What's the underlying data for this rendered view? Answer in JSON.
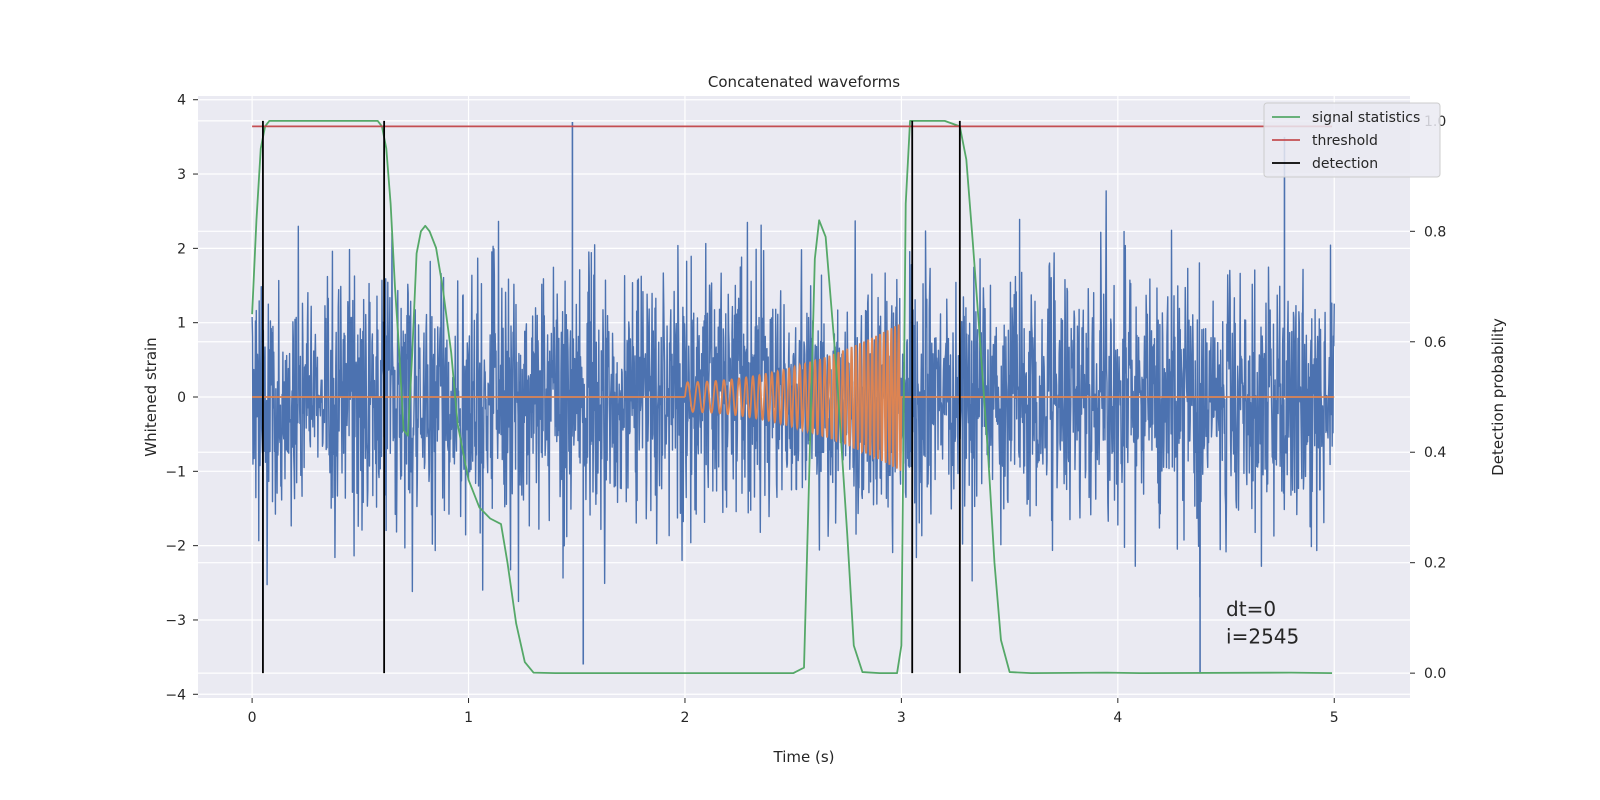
{
  "chart_data": {
    "type": "line",
    "title": "Concatenated waveforms",
    "xlabel": "Time (s)",
    "ylabel_left": "Whitened strain",
    "ylabel_right": "Detection probability",
    "xlim": [
      -0.25,
      5.35
    ],
    "ylim_left": [
      -4.05,
      4.05
    ],
    "ylim_right": [
      -0.045,
      1.045
    ],
    "x_ticks": [
      0,
      1,
      2,
      3,
      4,
      5
    ],
    "y_ticks_left": [
      -4,
      -3,
      -2,
      -1,
      0,
      1,
      2,
      3,
      4
    ],
    "y_ticks_right": [
      0.0,
      0.2,
      0.4,
      0.6,
      0.8,
      1.0
    ],
    "grid": true,
    "legend_position": "top-right",
    "colors": {
      "background": "#eaeaf2",
      "grid": "#ffffff",
      "strain": "#4c72b0",
      "waveform": "#dd8452",
      "signal_statistics": "#55a868",
      "threshold": "#c44e52",
      "detection": "#000000"
    },
    "series": [
      {
        "name": "",
        "axis": "left",
        "kind": "noise",
        "x_range": [
          0,
          5
        ],
        "std": 0.85,
        "notable_peaks": [
          [
            1.48,
            3.7
          ],
          [
            4.77,
            3.5
          ],
          [
            4.38,
            -3.7
          ],
          [
            1.53,
            -3.6
          ],
          [
            0.05,
            -3.0
          ]
        ]
      },
      {
        "name": "",
        "axis": "left",
        "kind": "chirp",
        "x_range": [
          0,
          5
        ],
        "active_range": [
          2.0,
          3.0
        ],
        "amplitude_start": 0.2,
        "amplitude_end": 1.0,
        "frequency_start": 20,
        "frequency_end": 60
      },
      {
        "name": "signal statistics",
        "axis": "right",
        "x": [
          0.0,
          0.02,
          0.04,
          0.06,
          0.08,
          0.1,
          0.2,
          0.3,
          0.4,
          0.5,
          0.55,
          0.58,
          0.6,
          0.62,
          0.64,
          0.66,
          0.68,
          0.7,
          0.72,
          0.74,
          0.76,
          0.78,
          0.8,
          0.82,
          0.85,
          0.88,
          0.92,
          0.95,
          1.0,
          1.05,
          1.1,
          1.15,
          1.18,
          1.22,
          1.26,
          1.3,
          1.4,
          2.0,
          2.5,
          2.55,
          2.57,
          2.6,
          2.62,
          2.65,
          2.7,
          2.75,
          2.78,
          2.82,
          2.9,
          2.98,
          3.0,
          3.02,
          3.04,
          3.06,
          3.1,
          3.2,
          3.27,
          3.3,
          3.33,
          3.36,
          3.4,
          3.43,
          3.46,
          3.5,
          3.6,
          3.95,
          4.1,
          4.8,
          4.99
        ],
        "values": [
          0.65,
          0.82,
          0.95,
          0.99,
          1.0,
          1.0,
          1.0,
          1.0,
          1.0,
          1.0,
          1.0,
          1.0,
          0.99,
          0.95,
          0.85,
          0.7,
          0.58,
          0.44,
          0.43,
          0.58,
          0.76,
          0.8,
          0.81,
          0.8,
          0.77,
          0.7,
          0.58,
          0.45,
          0.35,
          0.3,
          0.28,
          0.27,
          0.2,
          0.09,
          0.02,
          0.001,
          0.0,
          0.0,
          0.0,
          0.01,
          0.3,
          0.75,
          0.82,
          0.79,
          0.55,
          0.25,
          0.05,
          0.002,
          0.0,
          0.0,
          0.05,
          0.85,
          1.0,
          1.0,
          1.0,
          1.0,
          0.99,
          0.93,
          0.78,
          0.62,
          0.4,
          0.2,
          0.06,
          0.002,
          0.0,
          0.001,
          0.0,
          0.001,
          0.0
        ]
      },
      {
        "name": "threshold",
        "axis": "right",
        "x": [
          0,
          4.99
        ],
        "values": [
          0.99,
          0.99
        ]
      },
      {
        "name": "detection",
        "axis": "right",
        "kind": "vlines",
        "x": [
          0.05,
          0.61,
          3.05,
          3.27
        ],
        "ymin": 0.0,
        "ymax": 1.0
      }
    ],
    "annotations": [
      "dt=0",
      "i=2545"
    ]
  }
}
